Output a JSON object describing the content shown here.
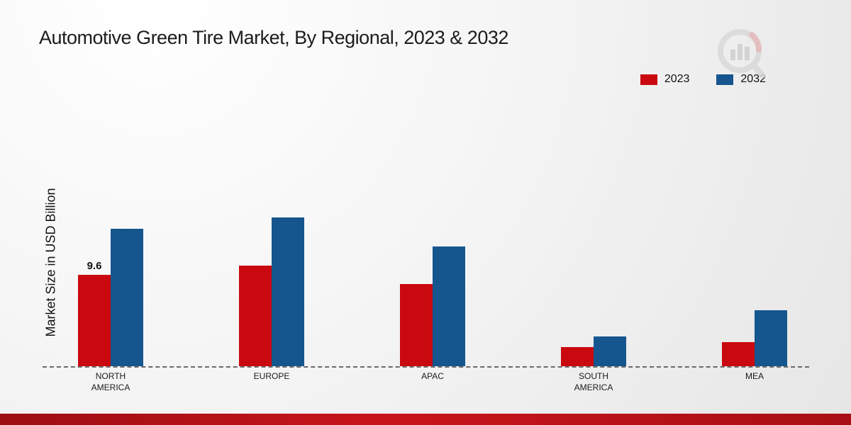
{
  "title": "Automotive Green Tire Market, By Regional, 2023 & 2032",
  "ylabel": "Market Size in USD Billion",
  "legend": {
    "items": [
      {
        "label": "2023",
        "color": "#c9090f"
      },
      {
        "label": "2032",
        "color": "#15568e"
      }
    ]
  },
  "chart_data": {
    "type": "bar",
    "title": "Automotive Green Tire Market, By Regional, 2023 & 2032",
    "xlabel": "",
    "ylabel": "Market Size in USD Billion",
    "categories": [
      "NORTH AMERICA",
      "EUROPE",
      "APAC",
      "SOUTH AMERICA",
      "MEA"
    ],
    "series": [
      {
        "name": "2023",
        "color": "#c9090f",
        "values": [
          9.6,
          10.6,
          8.6,
          2.0,
          2.5
        ]
      },
      {
        "name": "2032",
        "color": "#15568e",
        "values": [
          14.4,
          15.6,
          12.6,
          3.1,
          5.9
        ]
      }
    ],
    "annotations": [
      {
        "category_index": 0,
        "series_index": 0,
        "text": "9.6"
      }
    ],
    "ylim": [
      0,
      20
    ],
    "grid": false,
    "legend_position": "top-right",
    "baseline_style": "dashed"
  }
}
